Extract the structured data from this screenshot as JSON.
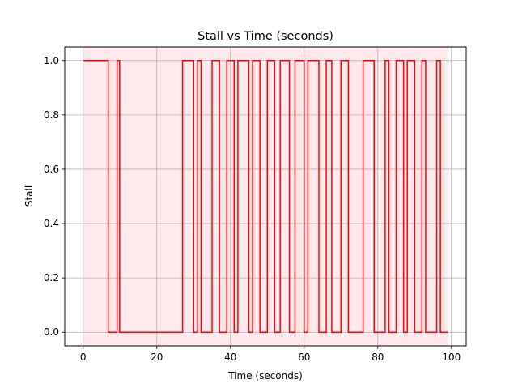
{
  "chart_data": {
    "type": "line",
    "step": true,
    "title": "Stall vs Time (seconds)",
    "xlabel": "Time (seconds)",
    "ylabel": "Stall",
    "xlim": [
      -5,
      104
    ],
    "ylim": [
      -0.05,
      1.05
    ],
    "xticks": [
      0,
      20,
      40,
      60,
      80,
      100
    ],
    "xtick_labels": [
      "0",
      "20",
      "40",
      "60",
      "80",
      "100"
    ],
    "yticks": [
      0.0,
      0.2,
      0.4,
      0.6,
      0.8,
      1.0
    ],
    "ytick_labels": [
      "0.0",
      "0.2",
      "0.4",
      "0.6",
      "0.8",
      "1.0"
    ],
    "grid": true,
    "line_color": "#ff0000",
    "span": {
      "x": [
        0,
        99
      ],
      "color": "#ffc0cb"
    },
    "series": [
      {
        "x": [
          0,
          6.8,
          6.8,
          9.2,
          9.2,
          9.9,
          9.9,
          27.0,
          27.0,
          30.0,
          30.0,
          31.0,
          31.0,
          32.0,
          32.0,
          35.0,
          35.0,
          37.0,
          37.0,
          39.0,
          39.0,
          41.0,
          41.0,
          42.0,
          42.0,
          45.0,
          45.0,
          46.0,
          46.0,
          48.0,
          48.0,
          50.0,
          50.0,
          52.0,
          52.0,
          53.5,
          53.5,
          56.0,
          56.0,
          57.5,
          57.5,
          60.0,
          60.0,
          61.0,
          61.0,
          64.0,
          64.0,
          66.0,
          66.0,
          67.5,
          67.5,
          70.0,
          70.0,
          72.0,
          72.0,
          76.0,
          76.0,
          79.0,
          79.0,
          82.0,
          82.0,
          83.0,
          83.0,
          85.0,
          85.0,
          87.0,
          87.0,
          88.0,
          88.0,
          90.0,
          90.0,
          92.0,
          92.0,
          93.0,
          93.0,
          96.0,
          96.0,
          97.0,
          97.0,
          99.0
        ],
        "y": [
          1,
          1,
          0,
          0,
          1,
          1,
          0,
          0,
          1,
          1,
          0,
          0,
          1,
          1,
          0,
          0,
          1,
          1,
          0,
          0,
          1,
          1,
          0,
          0,
          1,
          1,
          0,
          0,
          1,
          1,
          0,
          0,
          1,
          1,
          0,
          0,
          1,
          1,
          0,
          0,
          1,
          1,
          0,
          0,
          1,
          1,
          0,
          0,
          1,
          1,
          0,
          0,
          1,
          1,
          0,
          0,
          1,
          1,
          0,
          0,
          1,
          1,
          0,
          0,
          1,
          1,
          0,
          0,
          1,
          1,
          0,
          0,
          1,
          1,
          0,
          0,
          1,
          1,
          0,
          0
        ]
      }
    ]
  }
}
